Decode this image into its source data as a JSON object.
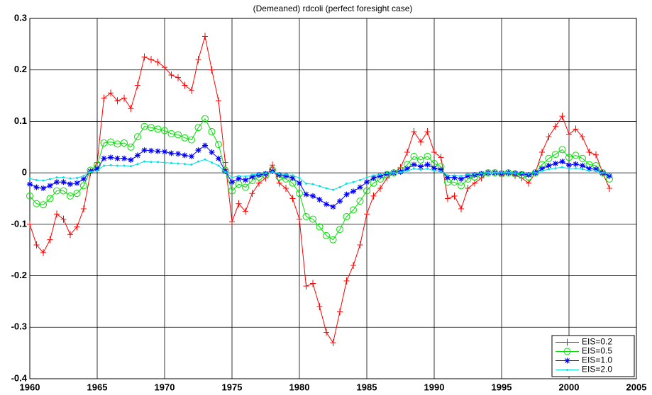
{
  "chart_data": {
    "type": "line",
    "title": "(Demeaned) rdcoli (perfect foresight case)",
    "x": [
      1960,
      1960.5,
      1961,
      1961.5,
      1962,
      1962.5,
      1963,
      1963.5,
      1964,
      1964.5,
      1965,
      1965.5,
      1966,
      1966.5,
      1967,
      1967.5,
      1968,
      1968.5,
      1969,
      1969.5,
      1970,
      1970.5,
      1971,
      1971.5,
      1972,
      1972.5,
      1973,
      1973.5,
      1974,
      1974.5,
      1975,
      1975.5,
      1976,
      1976.5,
      1977,
      1977.5,
      1978,
      1978.5,
      1979,
      1979.5,
      1980,
      1980.5,
      1981,
      1981.5,
      1982,
      1982.5,
      1983,
      1983.5,
      1984,
      1984.5,
      1985,
      1985.5,
      1986,
      1986.5,
      1987,
      1987.5,
      1988,
      1988.5,
      1989,
      1989.5,
      1990,
      1990.5,
      1991,
      1991.5,
      1992,
      1992.5,
      1993,
      1993.5,
      1994,
      1994.5,
      1995,
      1995.5,
      1996,
      1996.5,
      1997,
      1997.5,
      1998,
      1998.5,
      1999,
      1999.5,
      2000,
      2000.5,
      2001,
      2001.5,
      2002,
      2002.5,
      2003
    ],
    "series": [
      {
        "name": "EIS=0.2",
        "color": "#ff0000",
        "marker": "plus",
        "values": [
          -0.1,
          -0.14,
          -0.155,
          -0.13,
          -0.08,
          -0.09,
          -0.12,
          -0.105,
          -0.07,
          0.0,
          0.02,
          0.145,
          0.155,
          0.14,
          0.145,
          0.125,
          0.17,
          0.225,
          0.22,
          0.215,
          0.205,
          0.19,
          0.185,
          0.17,
          0.16,
          0.22,
          0.265,
          0.2,
          0.14,
          0.02,
          -0.095,
          -0.06,
          -0.075,
          -0.04,
          -0.02,
          -0.01,
          0.015,
          -0.02,
          -0.03,
          -0.05,
          -0.09,
          -0.22,
          -0.215,
          -0.26,
          -0.31,
          -0.33,
          -0.27,
          -0.21,
          -0.18,
          -0.14,
          -0.08,
          -0.045,
          -0.03,
          -0.01,
          0.0,
          0.01,
          0.04,
          0.08,
          0.06,
          0.08,
          0.04,
          0.03,
          -0.05,
          -0.045,
          -0.07,
          -0.03,
          -0.02,
          -0.01,
          0.0,
          0.0,
          -0.005,
          0.0,
          -0.005,
          -0.01,
          -0.02,
          0.0,
          0.04,
          0.07,
          0.09,
          0.11,
          0.075,
          0.085,
          0.07,
          0.04,
          0.035,
          0.0,
          -0.03
        ]
      },
      {
        "name": "EIS=0.5",
        "color": "#00e000",
        "marker": "circle",
        "values": [
          -0.045,
          -0.06,
          -0.062,
          -0.05,
          -0.035,
          -0.035,
          -0.045,
          -0.04,
          -0.025,
          0.005,
          0.015,
          0.058,
          0.06,
          0.056,
          0.058,
          0.05,
          0.07,
          0.09,
          0.088,
          0.085,
          0.082,
          0.076,
          0.074,
          0.068,
          0.064,
          0.088,
          0.105,
          0.08,
          0.055,
          0.005,
          -0.035,
          -0.022,
          -0.028,
          -0.015,
          -0.008,
          -0.004,
          0.006,
          -0.008,
          -0.012,
          -0.02,
          -0.04,
          -0.085,
          -0.09,
          -0.105,
          -0.122,
          -0.13,
          -0.11,
          -0.085,
          -0.072,
          -0.055,
          -0.035,
          -0.02,
          -0.012,
          -0.004,
          0.0,
          0.004,
          0.016,
          0.032,
          0.025,
          0.032,
          0.018,
          0.012,
          -0.018,
          -0.018,
          -0.025,
          -0.012,
          -0.008,
          -0.004,
          0.0,
          0.0,
          -0.002,
          0.0,
          -0.002,
          -0.004,
          -0.008,
          0.0,
          0.016,
          0.028,
          0.036,
          0.045,
          0.03,
          0.034,
          0.028,
          0.016,
          0.014,
          0.0,
          -0.012
        ]
      },
      {
        "name": "EIS=1.0",
        "color": "#0000ff",
        "marker": "star",
        "values": [
          -0.022,
          -0.028,
          -0.03,
          -0.025,
          -0.018,
          -0.018,
          -0.022,
          -0.02,
          -0.012,
          0.003,
          0.008,
          0.028,
          0.03,
          0.028,
          0.028,
          0.025,
          0.034,
          0.044,
          0.043,
          0.042,
          0.041,
          0.038,
          0.037,
          0.034,
          0.032,
          0.044,
          0.053,
          0.04,
          0.028,
          0.003,
          -0.018,
          -0.011,
          -0.014,
          -0.008,
          -0.004,
          -0.002,
          0.003,
          -0.004,
          -0.006,
          -0.01,
          -0.02,
          -0.042,
          -0.045,
          -0.052,
          -0.061,
          -0.066,
          -0.055,
          -0.042,
          -0.036,
          -0.028,
          -0.018,
          -0.01,
          -0.006,
          -0.002,
          0.0,
          0.002,
          0.008,
          0.016,
          0.012,
          0.016,
          0.009,
          0.006,
          -0.009,
          -0.009,
          -0.012,
          -0.006,
          -0.004,
          -0.002,
          0.0,
          0.0,
          -0.001,
          0.0,
          -0.001,
          -0.002,
          -0.004,
          0.0,
          0.008,
          0.014,
          0.018,
          0.022,
          0.015,
          0.017,
          0.014,
          0.008,
          0.007,
          0.0,
          -0.006
        ]
      },
      {
        "name": "EIS=2.0",
        "color": "#00e0e0",
        "marker": "dot",
        "values": [
          -0.011,
          -0.014,
          -0.015,
          -0.012,
          -0.009,
          -0.009,
          -0.011,
          -0.01,
          -0.006,
          0.002,
          0.004,
          0.014,
          0.015,
          0.014,
          0.014,
          0.013,
          0.017,
          0.022,
          0.021,
          0.021,
          0.02,
          0.019,
          0.018,
          0.017,
          0.016,
          0.022,
          0.026,
          0.02,
          0.014,
          0.002,
          -0.009,
          -0.006,
          -0.007,
          -0.004,
          -0.002,
          -0.001,
          0.002,
          -0.002,
          -0.003,
          -0.005,
          -0.01,
          -0.021,
          -0.022,
          -0.026,
          -0.03,
          -0.033,
          -0.028,
          -0.021,
          -0.018,
          -0.014,
          -0.009,
          -0.005,
          -0.003,
          -0.001,
          0.0,
          0.001,
          0.004,
          0.008,
          0.006,
          0.008,
          0.004,
          0.003,
          -0.005,
          -0.005,
          -0.006,
          -0.003,
          -0.002,
          -0.001,
          0.0,
          0.0,
          0.0,
          0.0,
          -0.001,
          -0.001,
          -0.002,
          0.0,
          0.004,
          0.007,
          0.009,
          0.011,
          0.008,
          0.009,
          0.007,
          0.004,
          0.004,
          0.0,
          -0.003
        ]
      }
    ],
    "xlim": [
      1960,
      2005
    ],
    "xticks": [
      1960,
      1965,
      1970,
      1975,
      1980,
      1985,
      1990,
      1995,
      2000,
      2005
    ],
    "ylim": [
      -0.4,
      0.3
    ],
    "yticks": [
      -0.4,
      -0.3,
      -0.2,
      -0.1,
      0,
      0.1,
      0.2,
      0.3
    ],
    "grid": true,
    "legend": "lower right"
  }
}
